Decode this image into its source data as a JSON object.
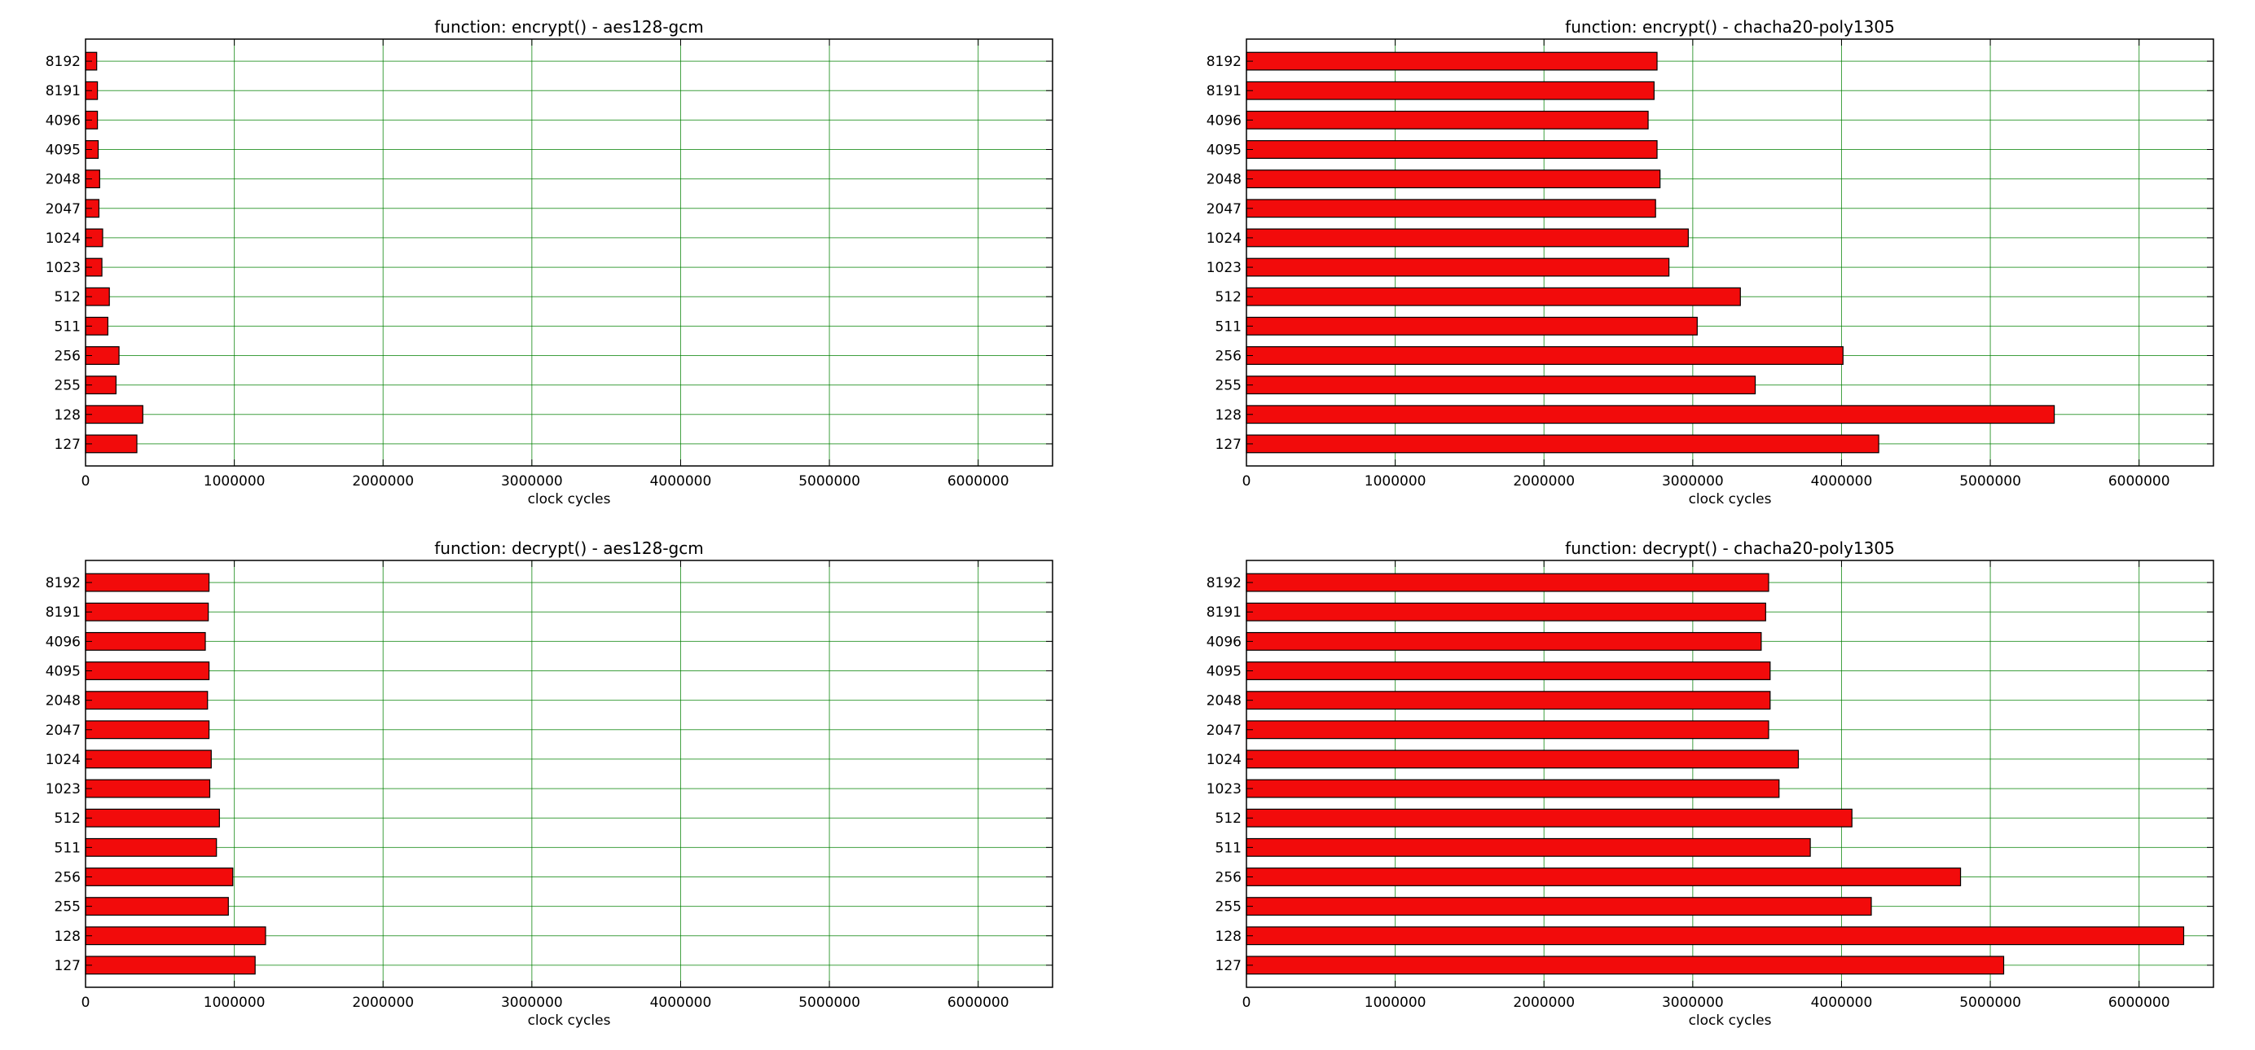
{
  "chart_data": [
    {
      "type": "bar",
      "orientation": "horizontal",
      "title": "function: encrypt() - aes128-gcm",
      "xlabel": "clock cycles",
      "ylabel": "",
      "xlim": [
        0,
        6500000
      ],
      "xticks": [
        0,
        1000000,
        2000000,
        3000000,
        4000000,
        5000000,
        6000000
      ],
      "xtick_labels": [
        "0",
        "1000000",
        "2000000",
        "3000000",
        "4000000",
        "5000000",
        "6000000"
      ],
      "grid": true,
      "categories": [
        "127",
        "128",
        "255",
        "256",
        "511",
        "512",
        "1023",
        "1024",
        "2047",
        "2048",
        "4095",
        "4096",
        "8191",
        "8192"
      ],
      "values": [
        345000,
        385000,
        205000,
        225000,
        150000,
        160000,
        110000,
        115000,
        90000,
        95000,
        85000,
        80000,
        80000,
        75000
      ]
    },
    {
      "type": "bar",
      "orientation": "horizontal",
      "title": "function: encrypt() - chacha20-poly1305",
      "xlabel": "clock cycles",
      "ylabel": "",
      "xlim": [
        0,
        6500000
      ],
      "xticks": [
        0,
        1000000,
        2000000,
        3000000,
        4000000,
        5000000,
        6000000
      ],
      "xtick_labels": [
        "0",
        "1000000",
        "2000000",
        "3000000",
        "4000000",
        "5000000",
        "6000000"
      ],
      "grid": true,
      "categories": [
        "127",
        "128",
        "255",
        "256",
        "511",
        "512",
        "1023",
        "1024",
        "2047",
        "2048",
        "4095",
        "4096",
        "8191",
        "8192"
      ],
      "values": [
        4250000,
        5430000,
        3420000,
        4010000,
        3030000,
        3320000,
        2840000,
        2970000,
        2750000,
        2780000,
        2760000,
        2700000,
        2740000,
        2760000
      ]
    },
    {
      "type": "bar",
      "orientation": "horizontal",
      "title": "function: decrypt() - aes128-gcm",
      "xlabel": "clock cycles",
      "ylabel": "",
      "xlim": [
        0,
        6500000
      ],
      "xticks": [
        0,
        1000000,
        2000000,
        3000000,
        4000000,
        5000000,
        6000000
      ],
      "xtick_labels": [
        "0",
        "1000000",
        "2000000",
        "3000000",
        "4000000",
        "5000000",
        "6000000"
      ],
      "grid": true,
      "categories": [
        "127",
        "128",
        "255",
        "256",
        "511",
        "512",
        "1023",
        "1024",
        "2047",
        "2048",
        "4095",
        "4096",
        "8191",
        "8192"
      ],
      "values": [
        1140000,
        1210000,
        960000,
        990000,
        880000,
        900000,
        835000,
        845000,
        830000,
        820000,
        830000,
        805000,
        825000,
        830000
      ]
    },
    {
      "type": "bar",
      "orientation": "horizontal",
      "title": "function: decrypt() - chacha20-poly1305",
      "xlabel": "clock cycles",
      "ylabel": "",
      "xlim": [
        0,
        6500000
      ],
      "xticks": [
        0,
        1000000,
        2000000,
        3000000,
        4000000,
        5000000,
        6000000
      ],
      "xtick_labels": [
        "0",
        "1000000",
        "2000000",
        "3000000",
        "4000000",
        "5000000",
        "6000000"
      ],
      "grid": true,
      "categories": [
        "127",
        "128",
        "255",
        "256",
        "511",
        "512",
        "1023",
        "1024",
        "2047",
        "2048",
        "4095",
        "4096",
        "8191",
        "8192"
      ],
      "values": [
        5090000,
        6300000,
        4200000,
        4800000,
        3790000,
        4070000,
        3580000,
        3710000,
        3510000,
        3520000,
        3520000,
        3460000,
        3490000,
        3510000
      ]
    }
  ],
  "colors": {
    "bar_fill": "#f20b0b",
    "bar_edge": "#000000",
    "grid": "#008000"
  }
}
